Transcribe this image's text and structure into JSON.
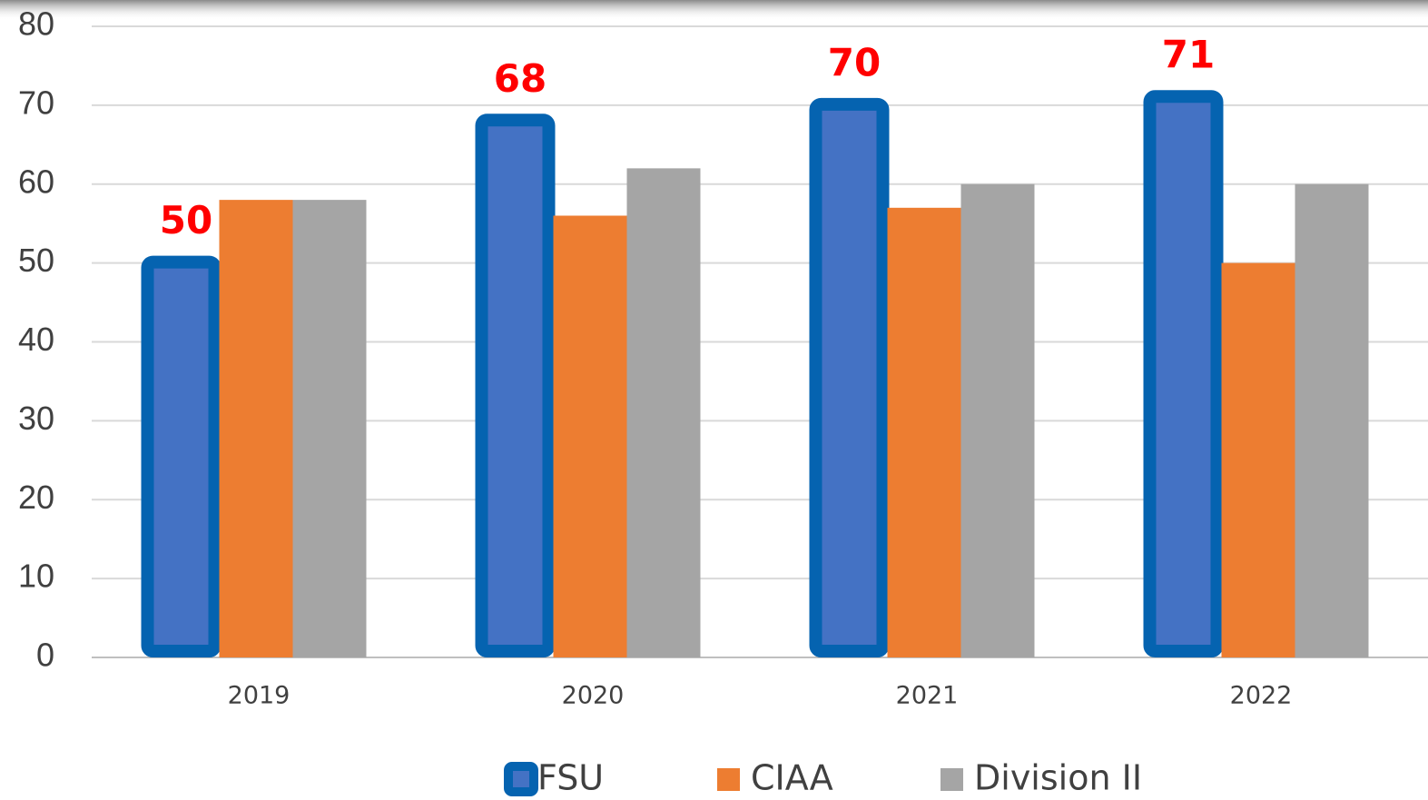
{
  "chart_data": {
    "type": "bar",
    "categories": [
      "2019",
      "2020",
      "2021",
      "2022"
    ],
    "series": [
      {
        "name": "FSU",
        "color": "#4472c4",
        "border_color": "#0563b0",
        "values": [
          50,
          68,
          70,
          71
        ],
        "data_labels": true,
        "label_color": "#ff0000"
      },
      {
        "name": "CIAA",
        "color": "#ed7d31",
        "values": [
          58,
          56,
          57,
          50
        ]
      },
      {
        "name": "Division II",
        "color": "#a5a5a5",
        "values": [
          58,
          62,
          60,
          60
        ]
      }
    ],
    "ylim": [
      0,
      80
    ],
    "yticks": [
      0,
      10,
      20,
      30,
      40,
      50,
      60,
      70,
      80
    ],
    "grid": true,
    "legend": "bottom"
  }
}
